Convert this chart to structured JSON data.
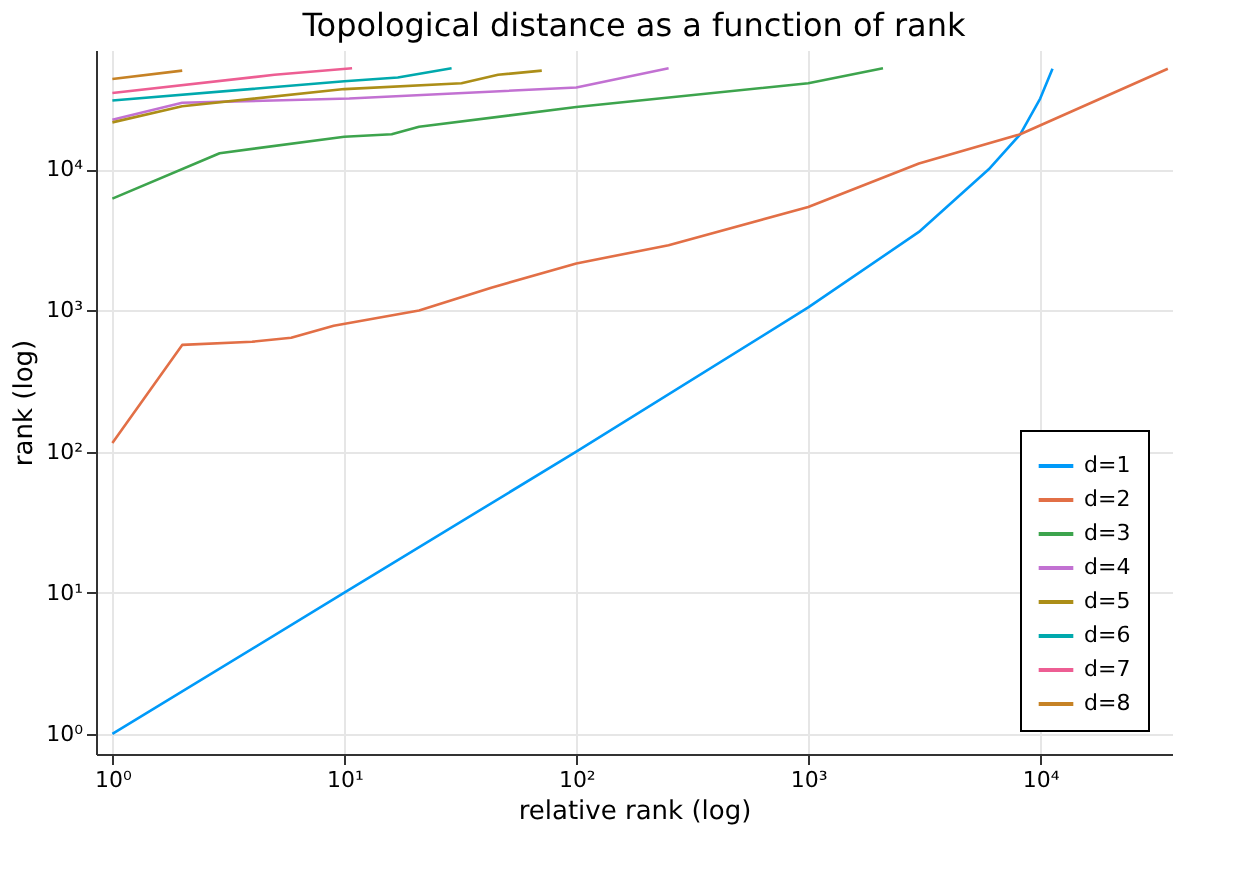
{
  "chart_data": {
    "type": "line",
    "title": "Topological distance as a function of rank",
    "xlabel": "relative rank (log)",
    "ylabel": "rank (log)",
    "log": "xy",
    "grid": true,
    "legend": "bottom right",
    "line_style": "solid",
    "marker": "none",
    "xlim": [
      0.85,
      37000
    ],
    "ylim": [
      0.72,
      70000
    ],
    "xticks": [
      {
        "value": 1,
        "label": "10⁰"
      },
      {
        "value": 10,
        "label": "10¹"
      },
      {
        "value": 100,
        "label": "10²"
      },
      {
        "value": 1000,
        "label": "10³"
      },
      {
        "value": 10000,
        "label": "10⁴"
      }
    ],
    "yticks": [
      {
        "value": 1,
        "label": "10⁰"
      },
      {
        "value": 10,
        "label": "10¹"
      },
      {
        "value": 100,
        "label": "10²"
      },
      {
        "value": 1000,
        "label": "10³"
      },
      {
        "value": 10000,
        "label": "10⁴"
      }
    ],
    "series": [
      {
        "name": "d=1",
        "color": "#009af9",
        "x": [
          1,
          10,
          100,
          1000,
          3000,
          6000,
          8200,
          10000,
          11300
        ],
        "values": [
          1,
          10,
          100,
          1050,
          3600,
          10000,
          17700,
          31700,
          51600
        ]
      },
      {
        "name": "d=2",
        "color": "#e26f46",
        "x": [
          1,
          2,
          4,
          5.9,
          9,
          21,
          43,
          100,
          250,
          1000,
          3000,
          8200,
          35500
        ],
        "values": [
          115,
          570,
          600,
          640,
          780,
          1000,
          1450,
          2150,
          2900,
          5400,
          11000,
          17700,
          51600
        ]
      },
      {
        "name": "d=3",
        "color": "#3da44d",
        "x": [
          1,
          2.9,
          10,
          16,
          21,
          100,
          1000,
          2100
        ],
        "values": [
          6200,
          13000,
          17000,
          17700,
          20000,
          27600,
          40700,
          52000
        ]
      },
      {
        "name": "d=4",
        "color": "#c271d2",
        "x": [
          1,
          2,
          10.5,
          100,
          250
        ],
        "values": [
          22400,
          29600,
          31700,
          38000,
          52000
        ]
      },
      {
        "name": "d=5",
        "color": "#ac8e18",
        "x": [
          1,
          2,
          10,
          32,
          46,
          71
        ],
        "values": [
          21500,
          28000,
          37000,
          40700,
          46700,
          50000
        ]
      },
      {
        "name": "d=6",
        "color": "#00a9ad",
        "x": [
          1,
          10,
          17,
          29
        ],
        "values": [
          30700,
          42000,
          44700,
          52000
        ]
      },
      {
        "name": "d=7",
        "color": "#ed5e93",
        "x": [
          1,
          5,
          10.8
        ],
        "values": [
          34700,
          46700,
          52000
        ]
      },
      {
        "name": "d=8",
        "color": "#c68225",
        "x": [
          1,
          2
        ],
        "values": [
          43600,
          50000
        ]
      }
    ]
  }
}
